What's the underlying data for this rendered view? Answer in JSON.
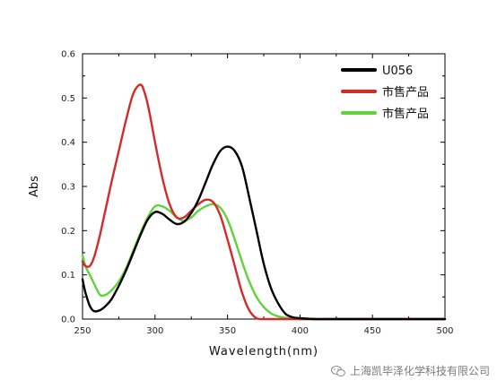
{
  "chart_data": {
    "type": "line",
    "xlabel": "Wavelength(nm)",
    "ylabel": "Abs",
    "xlim": [
      250,
      500
    ],
    "ylim": [
      0.0,
      0.6
    ],
    "xticks": [
      "250",
      "300",
      "350",
      "400",
      "450",
      "500"
    ],
    "yticks": [
      "0.0",
      "0.1",
      "0.2",
      "0.3",
      "0.4",
      "0.5",
      "0.6"
    ],
    "legend_position": "top-right",
    "series": [
      {
        "name": "U056",
        "color": "#000000",
        "x": [
          250,
          252,
          255,
          258,
          262,
          266,
          270,
          275,
          280,
          285,
          290,
          295,
          300,
          305,
          310,
          315,
          320,
          325,
          330,
          335,
          340,
          345,
          350,
          355,
          360,
          365,
          370,
          375,
          380,
          385,
          390,
          395,
          400,
          410,
          420,
          450,
          500
        ],
        "y": [
          0.09,
          0.06,
          0.03,
          0.018,
          0.02,
          0.03,
          0.045,
          0.075,
          0.11,
          0.15,
          0.19,
          0.225,
          0.242,
          0.238,
          0.225,
          0.215,
          0.22,
          0.24,
          0.27,
          0.31,
          0.35,
          0.38,
          0.39,
          0.38,
          0.345,
          0.275,
          0.2,
          0.125,
          0.07,
          0.035,
          0.012,
          0.004,
          0.002,
          0.0,
          0.0,
          0.0,
          0.0
        ]
      },
      {
        "name": "市售产品",
        "color": "#d42a2a",
        "x": [
          250,
          252,
          255,
          258,
          262,
          266,
          270,
          275,
          280,
          285,
          290,
          293,
          296,
          300,
          305,
          310,
          315,
          320,
          325,
          330,
          335,
          340,
          345,
          350,
          355,
          360,
          365,
          370,
          375,
          380,
          400,
          500
        ],
        "y": [
          0.13,
          0.12,
          0.12,
          0.14,
          0.19,
          0.25,
          0.31,
          0.38,
          0.45,
          0.51,
          0.53,
          0.51,
          0.47,
          0.4,
          0.32,
          0.26,
          0.23,
          0.23,
          0.245,
          0.26,
          0.27,
          0.265,
          0.235,
          0.18,
          0.12,
          0.06,
          0.02,
          0.002,
          0.0,
          0.0,
          0.0,
          0.0
        ]
      },
      {
        "name": "市售产品",
        "color": "#5fd43a",
        "x": [
          250,
          252,
          255,
          258,
          262,
          266,
          270,
          275,
          280,
          285,
          290,
          295,
          300,
          305,
          310,
          315,
          320,
          325,
          330,
          335,
          340,
          345,
          350,
          355,
          360,
          365,
          370,
          375,
          380,
          385,
          390,
          395,
          400,
          450,
          500
        ],
        "y": [
          0.145,
          0.12,
          0.1,
          0.08,
          0.055,
          0.055,
          0.065,
          0.085,
          0.115,
          0.155,
          0.195,
          0.23,
          0.255,
          0.255,
          0.245,
          0.23,
          0.222,
          0.23,
          0.245,
          0.255,
          0.26,
          0.252,
          0.225,
          0.18,
          0.13,
          0.085,
          0.05,
          0.027,
          0.013,
          0.006,
          0.003,
          0.001,
          0.0,
          0.0,
          0.0
        ]
      }
    ]
  },
  "watermark": "上海凯毕泽化学科技有限公司",
  "watermark_icon": "wechat-icon"
}
